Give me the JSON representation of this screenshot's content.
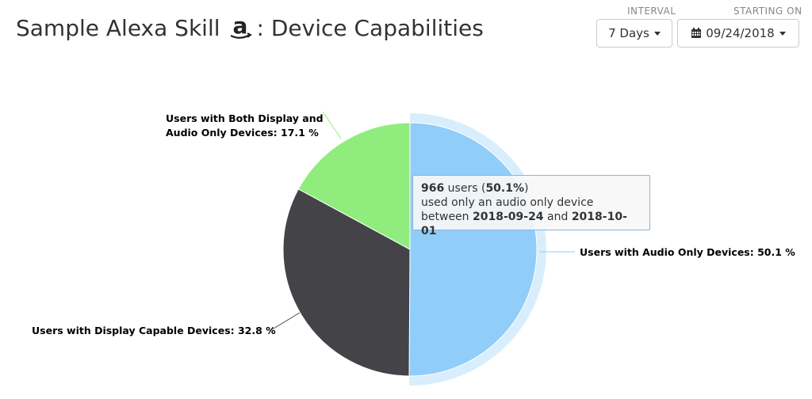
{
  "header": {
    "title_prefix": "Sample Alexa Skill",
    "title_suffix": ": Device Capabilities",
    "logo_icon": "amazon-logo-icon"
  },
  "controls": {
    "interval_label": "INTERVAL",
    "interval_value": "7 Days",
    "starting_label": "STARTING ON",
    "starting_value": "09/24/2018"
  },
  "tooltip": {
    "count": "966",
    "users_word": " users (",
    "percent": "50.1%",
    "close_paren": ")",
    "line2": "used only an audio only device",
    "between": "between ",
    "start_date": "2018-09-24",
    "and": " and ",
    "end_date": "2018-10-01"
  },
  "chart_data": {
    "type": "pie",
    "slices": [
      {
        "label": "Users with Audio Only Devices: 50.1 %",
        "value": 50.1,
        "color": "#90cdf9"
      },
      {
        "label": "Users with Display Capable Devices: 32.8 %",
        "value": 32.8,
        "color": "#434348"
      },
      {
        "label": "Users with Both Display and Audio Only Devices: 17.1 %",
        "value": 17.1,
        "color": "#90ed7d"
      }
    ],
    "highlighted_slice": 0
  }
}
